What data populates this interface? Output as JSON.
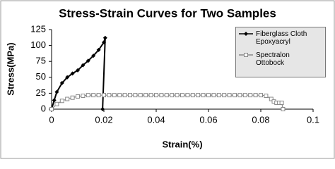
{
  "chart_data": {
    "type": "line",
    "title": "Stress-Strain Curves for Two Samples",
    "x_label": "Strain(%)",
    "y_label": "Stress(MPa)",
    "xlim": [
      0,
      0.1
    ],
    "xticks": [
      0,
      0.02,
      0.04,
      0.06,
      0.08,
      0.1
    ],
    "ylim": [
      0,
      125
    ],
    "yticks": [
      0,
      25,
      50,
      75,
      100,
      125
    ],
    "grid": false,
    "legend": "right",
    "series": [
      {
        "name": "Fiberglass Cloth Epoxyacryl",
        "color": "#000000",
        "marker": "diamond",
        "x": [
          0,
          0.001,
          0.002,
          0.004,
          0.006,
          0.008,
          0.01,
          0.012,
          0.014,
          0.016,
          0.018,
          0.02,
          0.0205,
          0.0195
        ],
        "values": [
          0,
          14,
          27,
          41,
          50,
          56,
          61,
          69,
          76,
          84,
          93,
          105,
          112,
          0
        ]
      },
      {
        "name": "Spectralon Ottobock",
        "color": "#888888",
        "marker": "square",
        "x": [
          0,
          0.002,
          0.004,
          0.006,
          0.008,
          0.01,
          0.012,
          0.014,
          0.016,
          0.018,
          0.02,
          0.022,
          0.024,
          0.026,
          0.028,
          0.03,
          0.032,
          0.034,
          0.036,
          0.038,
          0.04,
          0.042,
          0.044,
          0.046,
          0.048,
          0.05,
          0.052,
          0.054,
          0.056,
          0.058,
          0.06,
          0.062,
          0.064,
          0.066,
          0.068,
          0.07,
          0.072,
          0.074,
          0.076,
          0.078,
          0.08,
          0.082,
          0.084,
          0.085,
          0.086,
          0.087,
          0.088,
          0.0885
        ],
        "values": [
          0,
          8,
          13,
          16,
          18,
          20,
          21,
          22,
          22,
          22,
          22,
          22,
          22,
          22,
          22,
          22,
          22,
          22,
          22,
          22,
          22,
          22,
          22,
          22,
          22,
          22,
          22,
          22,
          22,
          22,
          22,
          22,
          22,
          22,
          22,
          22,
          22,
          22,
          22,
          22,
          22,
          21,
          16,
          12,
          10,
          10,
          10,
          0
        ]
      }
    ]
  }
}
